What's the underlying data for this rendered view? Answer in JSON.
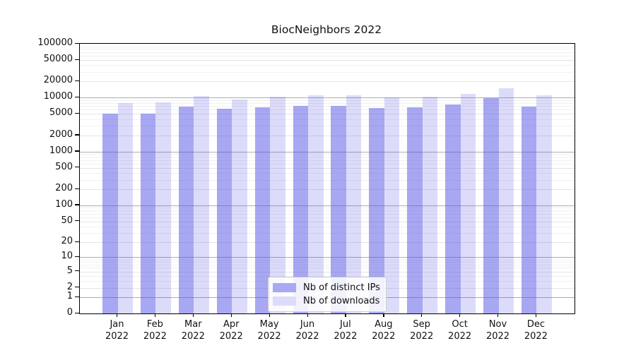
{
  "page": {
    "background": "#ffffff"
  },
  "chart_data": {
    "type": "bar",
    "title": "BiocNeighbors 2022",
    "categories": [
      "Jan",
      "Feb",
      "Mar",
      "Apr",
      "May",
      "Jun",
      "Jul",
      "Aug",
      "Sep",
      "Oct",
      "Nov",
      "Dec"
    ],
    "category_year": "2022",
    "series": [
      {
        "name": "Nb of distinct IPs",
        "bar_color": "rgba(80,80,230,0.5)",
        "legend_color": "#a9a9f2",
        "values": [
          5100,
          5100,
          6900,
          6300,
          6700,
          7000,
          7000,
          6500,
          6700,
          7600,
          9900,
          6900
        ]
      },
      {
        "name": "Nb of downloads",
        "bar_color": "rgba(80,80,230,0.2)",
        "legend_color": "#dcdcfa",
        "values": [
          8000,
          8100,
          10800,
          9300,
          10500,
          11100,
          11200,
          10100,
          10300,
          11800,
          14900,
          11100
        ]
      }
    ],
    "y_axis": {
      "ticks": [
        0,
        1,
        2,
        5,
        10,
        20,
        50,
        100,
        200,
        500,
        1000,
        2000,
        5000,
        10000,
        20000,
        50000,
        100000
      ],
      "max": 100000,
      "scale": "log10(v+1)"
    },
    "grid": true,
    "legend_position": "inside-bottom-center"
  }
}
